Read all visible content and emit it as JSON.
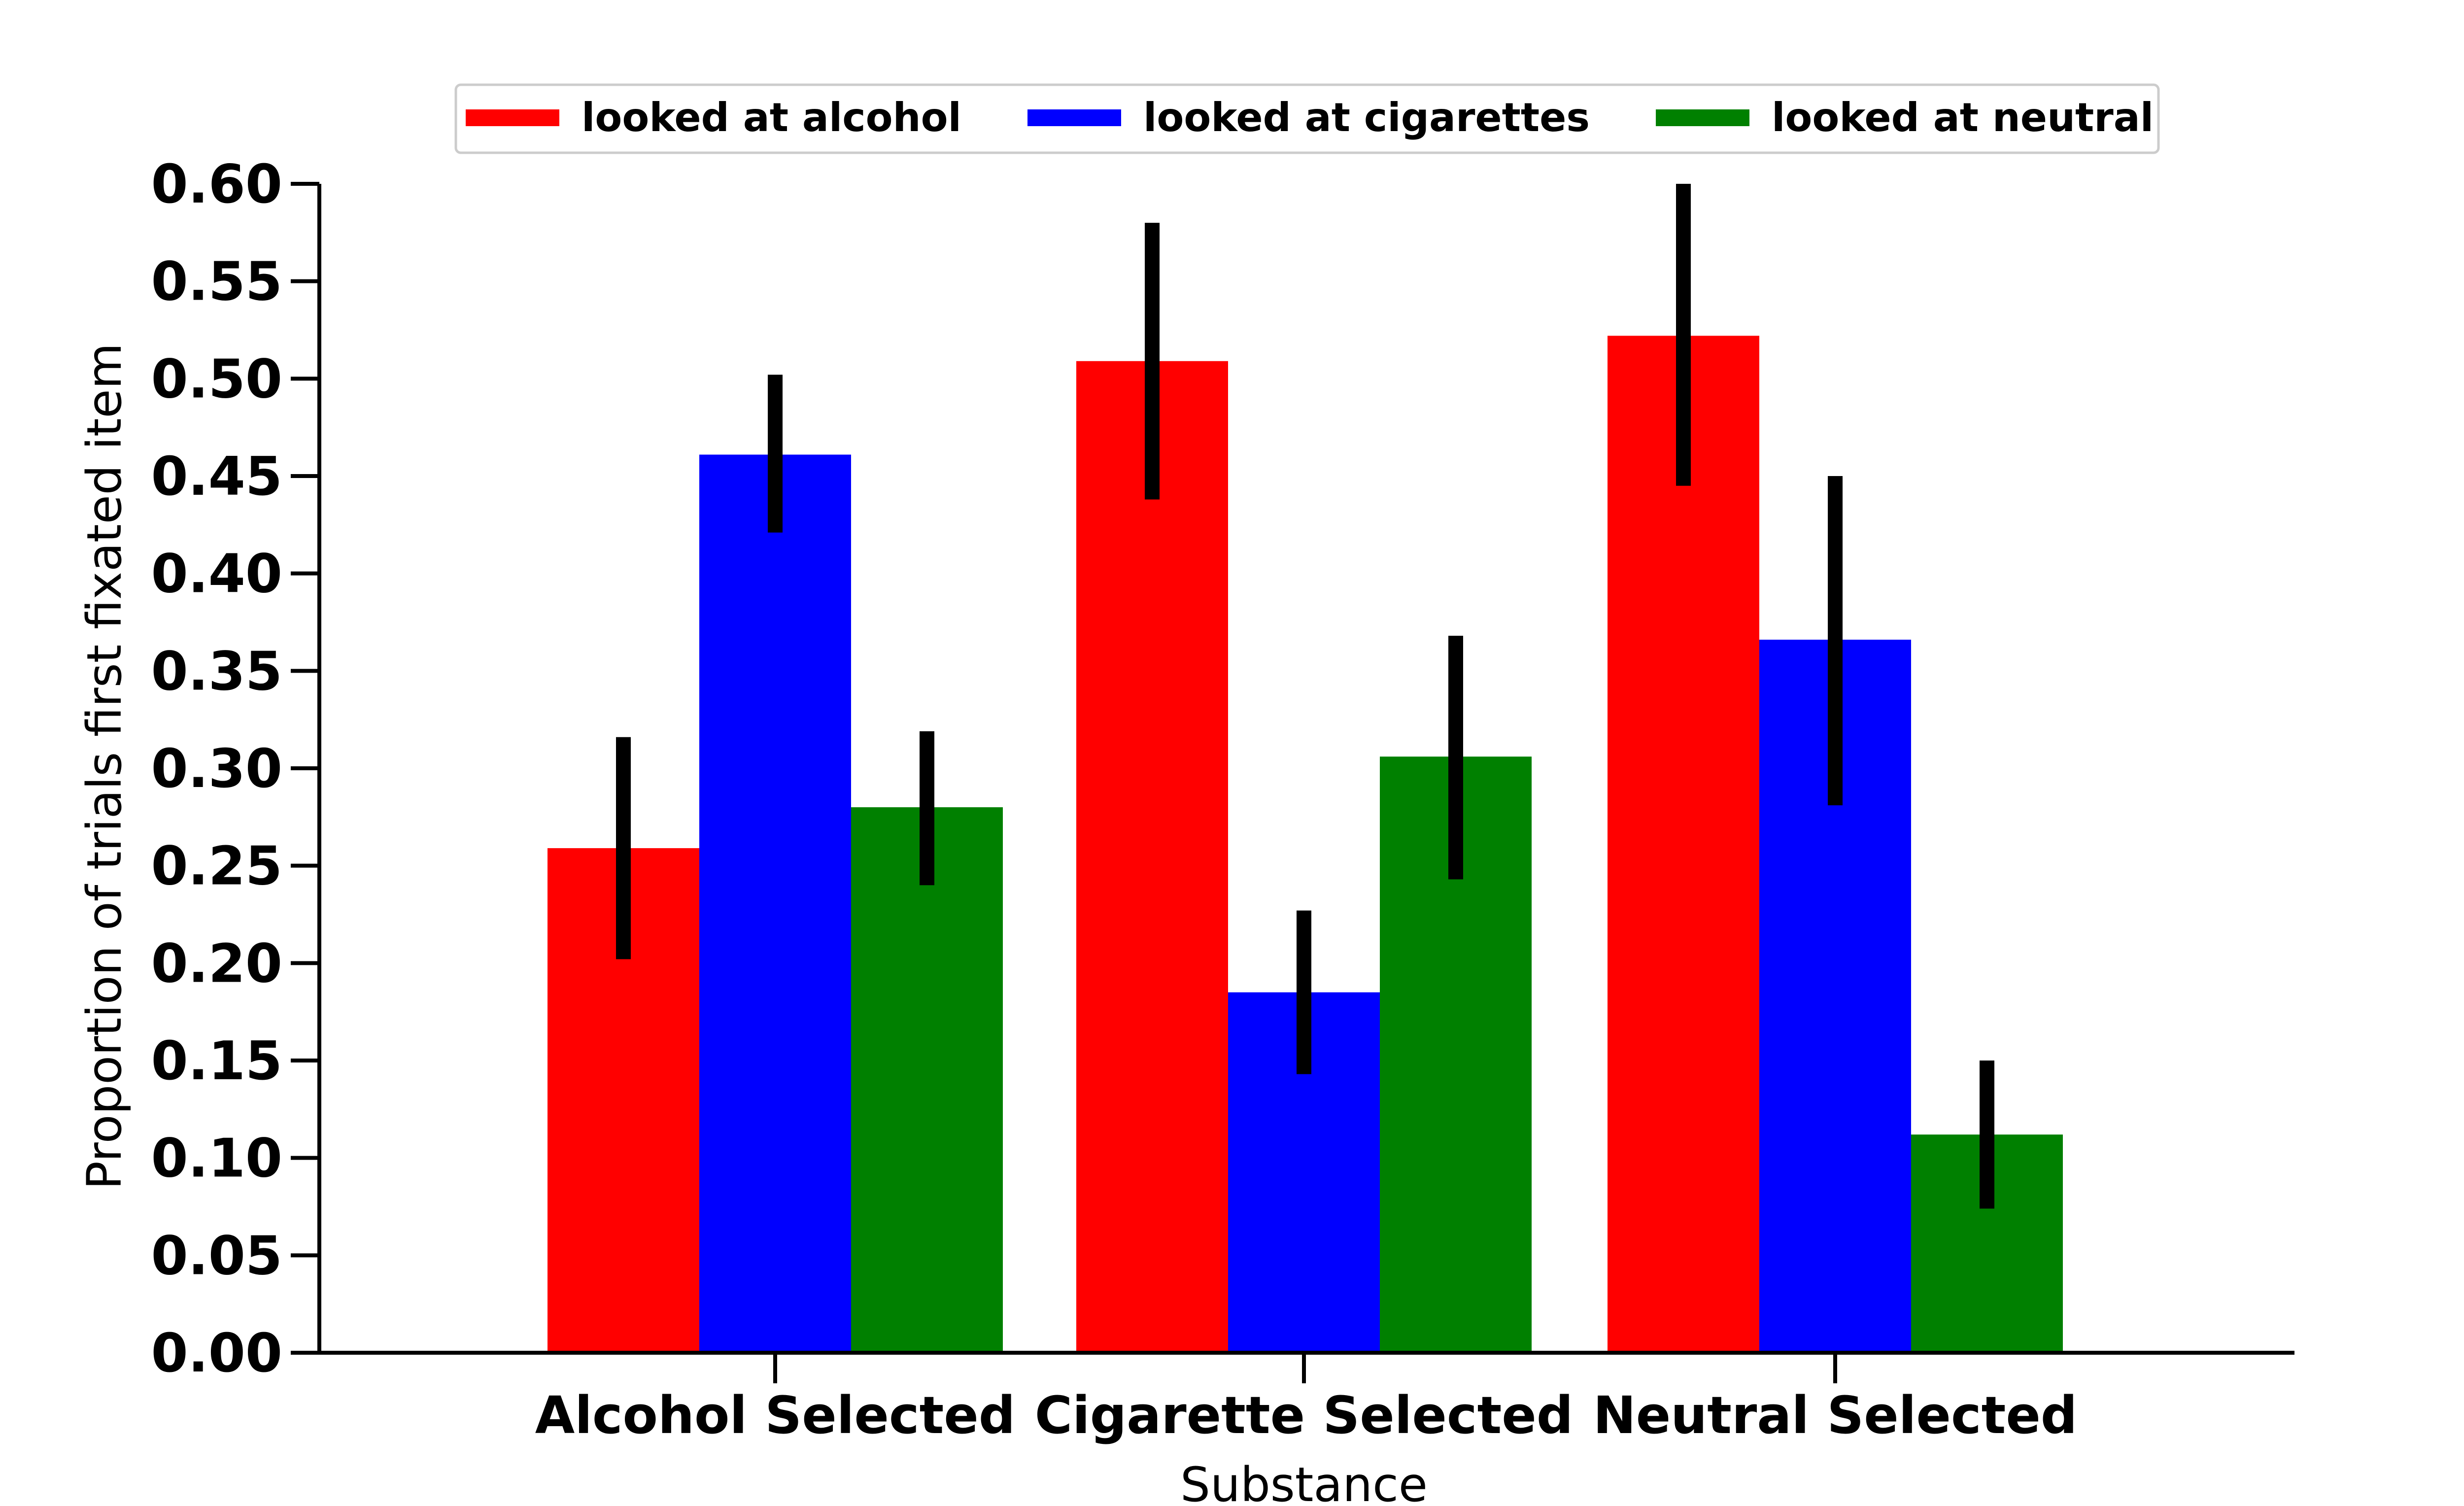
{
  "chart_data": {
    "type": "bar",
    "xlabel": "Substance",
    "ylabel": "Proportion of trials first fixated item",
    "categories": [
      "Alcohol Selected",
      "Cigarette Selected",
      "Neutral Selected"
    ],
    "ylim": [
      0,
      0.6
    ],
    "yticks": [
      "0.00",
      "0.05",
      "0.10",
      "0.15",
      "0.20",
      "0.25",
      "0.30",
      "0.35",
      "0.40",
      "0.45",
      "0.50",
      "0.55",
      "0.60"
    ],
    "grid": false,
    "legend_position": "top-center",
    "series": [
      {
        "name": "looked at alcohol",
        "color": "#ff0000",
        "values": [
          0.259,
          0.509,
          0.522
        ],
        "error_low": [
          0.202,
          0.438,
          0.445
        ],
        "error_high": [
          0.316,
          0.58,
          0.6
        ]
      },
      {
        "name": "looked at cigarettes",
        "color": "#0000ff",
        "values": [
          0.461,
          0.185,
          0.366
        ],
        "error_low": [
          0.421,
          0.143,
          0.281
        ],
        "error_high": [
          0.502,
          0.227,
          0.45
        ]
      },
      {
        "name": "looked at neutral",
        "color": "#008000",
        "values": [
          0.28,
          0.306,
          0.112
        ],
        "error_low": [
          0.24,
          0.243,
          0.074
        ],
        "error_high": [
          0.319,
          0.368,
          0.15
        ]
      }
    ],
    "error_bar_color": "#000000"
  }
}
